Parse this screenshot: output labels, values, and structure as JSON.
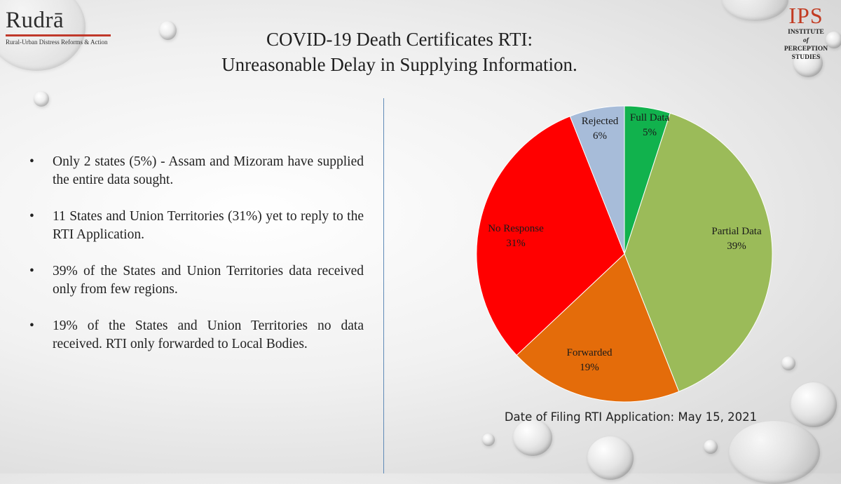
{
  "header": {
    "org_left": {
      "name": "Rudrā",
      "subtitle": "Rural-Urban Distress Reforms & Action"
    },
    "org_right": {
      "acronym": "IPS",
      "line1": "INSTITUTE",
      "line2": "of",
      "line3": "PERCEPTION",
      "line4": "STUDIES"
    },
    "title_line1": "COVID-19 Death Certificates RTI:",
    "title_line2": "Unreasonable Delay in Supplying Information."
  },
  "bullets": [
    "Only 2 states (5%) - Assam and Mizoram have supplied the entire data sought.",
    "11 States and Union Territories (31%) yet to reply to the RTI Application.",
    "39% of the States and Union Territories data received only from few regions.",
    "19% of the States and Union Territories no data received. RTI only forwarded to Local Bodies."
  ],
  "bullet_symbol": "•",
  "chart_data": {
    "type": "pie",
    "categories": [
      "Full Data",
      "Partial Data",
      "Forwarded",
      "No Response",
      "Rejected"
    ],
    "values": [
      5,
      39,
      19,
      31,
      6
    ],
    "value_labels": [
      "5%",
      "39%",
      "19%",
      "31%",
      "6%"
    ],
    "colors": [
      "#11b24d",
      "#9bbb59",
      "#e46c0a",
      "#ff0000",
      "#a7bcd9"
    ],
    "start_angle_deg": 0,
    "direction": "clockwise",
    "legend": "none"
  },
  "caption": "Date of Filing RTI Application: May 15, 2021"
}
